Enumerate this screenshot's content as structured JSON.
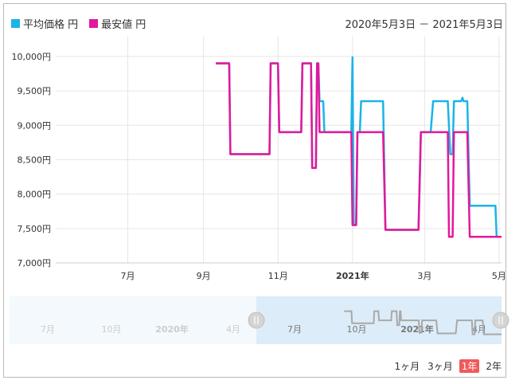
{
  "legend": {
    "items": [
      {
        "label": "平均価格 円",
        "color": "#1ab4e8"
      },
      {
        "label": "最安値 円",
        "color": "#e3189a"
      }
    ]
  },
  "date_range": "2020年5月3日 － 2021年5月3日",
  "zoom": {
    "buttons": [
      "1ヶ月",
      "3ヶ月",
      "1年",
      "2年"
    ],
    "active": "1年"
  },
  "navigator": {
    "labels": [
      "7月",
      "10月",
      "2020年",
      "4月",
      "7月",
      "10月",
      "2021年",
      "4月"
    ]
  },
  "chart_data": {
    "type": "line",
    "xlim": [
      "2020-05-03",
      "2021-05-03"
    ],
    "ylim": [
      7000,
      10300
    ],
    "y_ticks": [
      7000,
      7500,
      8000,
      8500,
      9000,
      9500,
      10000
    ],
    "y_tick_labels": [
      "7,000円",
      "7,500円",
      "8,000円",
      "8,500円",
      "9,000円",
      "9,500円",
      "10,000円"
    ],
    "x_ticks": [
      {
        "date": "2020-07-01",
        "label": "7月",
        "bold": false
      },
      {
        "date": "2020-09-01",
        "label": "9月",
        "bold": false
      },
      {
        "date": "2020-11-01",
        "label": "11月",
        "bold": false
      },
      {
        "date": "2021-01-01",
        "label": "2021年",
        "bold": true
      },
      {
        "date": "2021-03-01",
        "label": "3月",
        "bold": false
      },
      {
        "date": "2021-05-01",
        "label": "5月",
        "bold": false
      }
    ],
    "grid": true,
    "series": [
      {
        "name": "平均価格 円",
        "color": "#1ab4e8",
        "points": [
          [
            "2020-09-11",
            9900
          ],
          [
            "2020-09-22",
            9900
          ],
          [
            "2020-09-23",
            8580
          ],
          [
            "2020-10-25",
            8580
          ],
          [
            "2020-10-26",
            9900
          ],
          [
            "2020-11-01",
            9900
          ],
          [
            "2020-11-02",
            8900
          ],
          [
            "2020-11-20",
            8900
          ],
          [
            "2020-11-21",
            9900
          ],
          [
            "2020-11-28",
            9900
          ],
          [
            "2020-11-29",
            8380
          ],
          [
            "2020-12-02",
            8380
          ],
          [
            "2020-12-03",
            9900
          ],
          [
            "2020-12-04",
            9900
          ],
          [
            "2020-12-05",
            9350
          ],
          [
            "2020-12-08",
            9350
          ],
          [
            "2020-12-09",
            8900
          ],
          [
            "2020-12-31",
            8900
          ],
          [
            "2021-01-01",
            9990
          ],
          [
            "2021-01-02",
            7550
          ],
          [
            "2021-01-04",
            7550
          ],
          [
            "2021-01-05",
            8900
          ],
          [
            "2021-01-07",
            8900
          ],
          [
            "2021-01-08",
            9350
          ],
          [
            "2021-01-26",
            9350
          ],
          [
            "2021-01-28",
            7480
          ],
          [
            "2021-02-24",
            7480
          ],
          [
            "2021-02-26",
            8900
          ],
          [
            "2021-03-06",
            8900
          ],
          [
            "2021-03-08",
            9350
          ],
          [
            "2021-03-20",
            9350
          ],
          [
            "2021-03-22",
            8580
          ],
          [
            "2021-03-24",
            8580
          ],
          [
            "2021-03-25",
            9350
          ],
          [
            "2021-03-31",
            9350
          ],
          [
            "2021-04-01",
            9400
          ],
          [
            "2021-04-02",
            9350
          ],
          [
            "2021-04-05",
            9350
          ],
          [
            "2021-04-07",
            7830
          ],
          [
            "2021-04-28",
            7830
          ],
          [
            "2021-04-29",
            7380
          ],
          [
            "2021-05-03",
            7380
          ]
        ]
      },
      {
        "name": "最安値 円",
        "color": "#e3189a",
        "points": [
          [
            "2020-09-11",
            9900
          ],
          [
            "2020-09-22",
            9900
          ],
          [
            "2020-09-23",
            8580
          ],
          [
            "2020-10-25",
            8580
          ],
          [
            "2020-10-26",
            9900
          ],
          [
            "2020-11-01",
            9900
          ],
          [
            "2020-11-02",
            8900
          ],
          [
            "2020-11-20",
            8900
          ],
          [
            "2020-11-21",
            9900
          ],
          [
            "2020-11-28",
            9900
          ],
          [
            "2020-11-29",
            8380
          ],
          [
            "2020-12-02",
            8380
          ],
          [
            "2020-12-03",
            9900
          ],
          [
            "2020-12-04",
            9900
          ],
          [
            "2020-12-05",
            8900
          ],
          [
            "2020-12-31",
            8900
          ],
          [
            "2021-01-01",
            7550
          ],
          [
            "2021-01-04",
            7550
          ],
          [
            "2021-01-05",
            8900
          ],
          [
            "2021-01-26",
            8900
          ],
          [
            "2021-01-28",
            7480
          ],
          [
            "2021-02-24",
            7480
          ],
          [
            "2021-02-26",
            8900
          ],
          [
            "2021-03-20",
            8900
          ],
          [
            "2021-03-21",
            7380
          ],
          [
            "2021-03-24",
            7380
          ],
          [
            "2021-03-25",
            8900
          ],
          [
            "2021-04-05",
            8900
          ],
          [
            "2021-04-07",
            7380
          ],
          [
            "2021-05-03",
            7380
          ]
        ]
      }
    ]
  }
}
